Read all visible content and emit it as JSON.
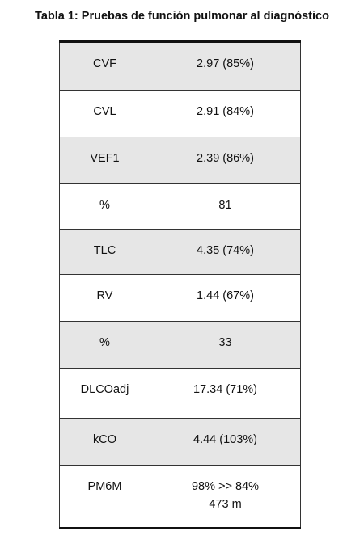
{
  "title": "Tabla 1: Pruebas de función pulmonar al diagnóstico",
  "table": {
    "rows": [
      [
        "CVF",
        "2.97 (85%)"
      ],
      [
        "CVL",
        "2.91 (84%)"
      ],
      [
        "VEF1",
        "2.39 (86%)"
      ],
      [
        "%",
        "81"
      ],
      [
        "TLC",
        "4.35 (74%)"
      ],
      [
        "RV",
        "1.44 (67%)"
      ],
      [
        "%",
        "33"
      ],
      [
        "DLCOadj",
        "17.34 (71%)"
      ],
      [
        "kCO",
        "4.44 (103%)"
      ],
      [
        "PM6M",
        [
          "98% >> 84%",
          "473 m"
        ]
      ]
    ]
  }
}
